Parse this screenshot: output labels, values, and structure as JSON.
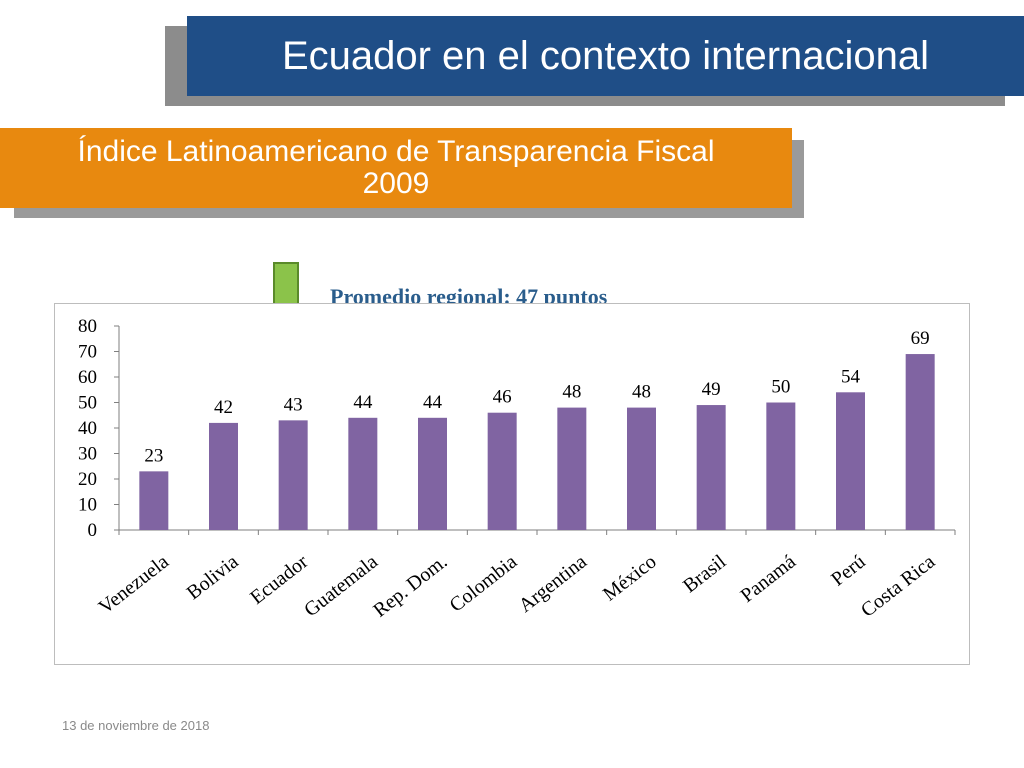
{
  "header": {
    "title": "Ecuador en el contexto internacional",
    "subtitle_line1": "Índice Latinoamericano de Transparencia Fiscal",
    "subtitle_line2": "2009"
  },
  "annotation": {
    "average_text": "Promedio regional: 47 puntos",
    "arrow_target": "Ecuador",
    "arrow_color": "#8bc34a"
  },
  "footer": {
    "date": "13 de noviembre de 2018"
  },
  "chart_data": {
    "type": "bar",
    "categories": [
      "Venezuela",
      "Bolivia",
      "Ecuador",
      "Guatemala",
      "Rep. Dom.",
      "Colombia",
      "Argentina",
      "México",
      "Brasil",
      "Panamá",
      "Perú",
      "Costa Rica"
    ],
    "values": [
      23,
      42,
      43,
      44,
      44,
      46,
      48,
      48,
      49,
      50,
      54,
      69
    ],
    "ylim": [
      0,
      80
    ],
    "yticks": [
      0,
      10,
      20,
      30,
      40,
      50,
      60,
      70,
      80
    ],
    "title": "",
    "xlabel": "",
    "ylabel": "",
    "bar_color": "#8064a2",
    "grid": false,
    "legend": "none",
    "data_labels": true
  }
}
